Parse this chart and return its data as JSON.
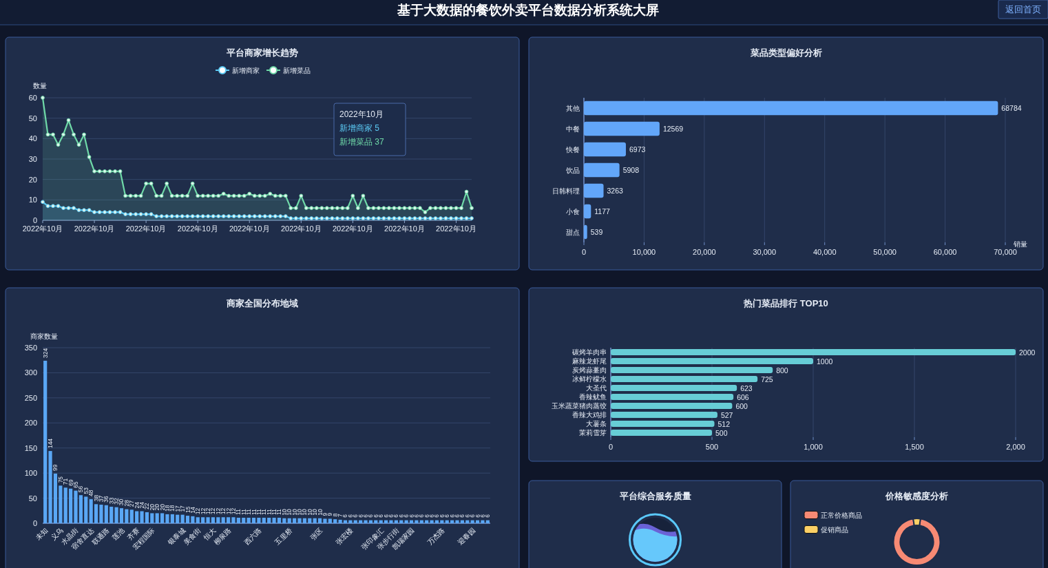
{
  "chart_data": [
    {
      "type": "other",
      "title": "基于大数据的餐饮外卖平台数据分析系统大屏",
      "annotations": [
        "返回首页"
      ]
    },
    {
      "type": "area",
      "title": "平台商家增长趋势",
      "ylabel": "数量",
      "legend": "top",
      "marker": "circle",
      "grid": "y",
      "ylim": [
        0,
        60
      ],
      "yticks": [
        {
          "value": 0,
          "label": "0"
        },
        10,
        20,
        30,
        40,
        50,
        60
      ],
      "categories": [
        "2022年10月",
        null,
        null,
        null,
        null,
        null,
        null,
        null,
        null,
        null,
        "2022年10月",
        null,
        null,
        null,
        null,
        null,
        null,
        null,
        null,
        null,
        "2022年10月",
        null,
        null,
        null,
        null,
        null,
        null,
        null,
        null,
        null,
        "2022年10月",
        null,
        null,
        null,
        null,
        null,
        null,
        null,
        null,
        null,
        "2022年10月",
        null,
        null,
        null,
        null,
        null,
        null,
        null,
        null,
        null,
        "2022年10月",
        null,
        null,
        null,
        null,
        null,
        null,
        null,
        null,
        null,
        "2022年10月",
        null,
        null,
        null,
        null,
        null,
        null,
        null,
        null,
        null,
        "2022年10月",
        null,
        null,
        null,
        null,
        null,
        null,
        null,
        null,
        null,
        "2022年10月",
        null,
        null,
        null
      ],
      "series": [
        {
          "name": "新增菜品",
          "color": "#6fd9a8",
          "values": [
            60,
            42,
            42,
            37,
            42,
            49,
            42,
            37,
            42,
            31,
            24,
            24,
            24,
            24,
            24,
            24,
            12,
            12,
            12,
            12,
            18,
            18,
            12,
            12,
            18,
            12,
            12,
            12,
            12,
            18,
            12,
            12,
            12,
            12,
            12,
            13,
            12,
            12,
            12,
            12,
            13,
            12,
            12,
            12,
            13,
            12,
            12,
            12,
            6,
            6,
            12,
            6,
            6,
            6,
            6,
            6,
            6,
            6,
            6,
            6,
            12,
            6,
            12,
            6,
            6,
            6,
            6,
            6,
            6,
            6,
            6,
            6,
            6,
            6,
            4,
            6,
            6,
            6,
            6,
            6,
            6,
            6,
            14,
            6
          ]
        },
        {
          "name": "新增商家",
          "color": "#5ccbf5",
          "values": [
            9,
            7,
            7,
            7,
            6,
            6,
            6,
            5,
            5,
            5,
            4,
            4,
            4,
            4,
            4,
            4,
            3,
            3,
            3,
            3,
            3,
            3,
            2,
            2,
            2,
            2,
            2,
            2,
            2,
            2,
            2,
            2,
            2,
            2,
            2,
            2,
            2,
            2,
            2,
            2,
            2,
            2,
            2,
            2,
            2,
            2,
            2,
            2,
            1,
            1,
            1,
            1,
            1,
            1,
            1,
            1,
            1,
            1,
            1,
            1,
            1,
            1,
            1,
            1,
            1,
            1,
            1,
            1,
            1,
            1,
            1,
            1,
            1,
            1,
            1,
            1,
            1,
            1,
            1,
            1,
            1,
            1,
            1,
            1
          ]
        }
      ],
      "annotations": [
        "2022年10月",
        "新增商家 5",
        "新增菜品 37"
      ]
    },
    {
      "type": "bar",
      "orientation": "horizontal",
      "title": "菜品类型偏好分析",
      "xlabel": "销量",
      "grid": "x",
      "data_labels": true,
      "color": "#62a6f9",
      "categories": [
        "其他",
        "中餐",
        "快餐",
        "饮品",
        "日韩料理",
        "小食",
        "甜点"
      ],
      "values": [
        68784,
        12569,
        6973,
        5908,
        3263,
        1177,
        539
      ],
      "xlim": [
        0,
        70000
      ],
      "xticks": [
        {
          "value": 0,
          "label": "0"
        },
        {
          "value": 10000,
          "label": "10,000"
        },
        {
          "value": 20000,
          "label": "20,000"
        },
        {
          "value": 30000,
          "label": "30,000"
        },
        {
          "value": 40000,
          "label": "40,000"
        },
        {
          "value": 50000,
          "label": "50,000"
        },
        {
          "value": 60000,
          "label": "60,000"
        },
        {
          "value": 70000,
          "label": "70,000"
        }
      ]
    },
    {
      "type": "bar",
      "title": "商家全国分布地域",
      "ylabel": "商家数量",
      "grid": "y",
      "data_labels": true,
      "color": "#5aa7f5",
      "ylim": [
        0,
        350
      ],
      "yticks": [
        {
          "value": 0,
          "label": "0"
        },
        50,
        100,
        150,
        200,
        250,
        300,
        350
      ],
      "categories": [
        "未知",
        null,
        null,
        "义乌",
        null,
        null,
        "水晶街",
        null,
        null,
        "宿舍直达",
        null,
        null,
        "联通路",
        null,
        null,
        "莲池",
        null,
        null,
        "齐赛",
        null,
        null,
        "宏程国际",
        null,
        null,
        null,
        null,
        null,
        "银泰城",
        null,
        null,
        "美食街",
        null,
        null,
        "恒大",
        null,
        null,
        "柳泉路",
        null,
        null,
        null,
        null,
        null,
        "西六路",
        null,
        null,
        null,
        null,
        null,
        "五里桥",
        null,
        null,
        null,
        null,
        null,
        "张区",
        null,
        null,
        null,
        null,
        null,
        "张宏楼",
        null,
        null,
        null,
        null,
        null,
        "张印象汇",
        null,
        null,
        "张步行街",
        null,
        null,
        "凯瑞家园",
        null,
        null,
        null,
        null,
        null,
        "万杰路",
        null,
        null,
        null,
        null,
        null,
        "迎春园",
        null,
        null,
        null
      ],
      "values": [
        324,
        144,
        99,
        75,
        71,
        69,
        65,
        56,
        53,
        48,
        38,
        37,
        36,
        33,
        32,
        30,
        28,
        27,
        24,
        24,
        22,
        20,
        20,
        20,
        18,
        18,
        17,
        17,
        15,
        14,
        12,
        12,
        12,
        12,
        12,
        12,
        12,
        12,
        11,
        11,
        11,
        11,
        11,
        11,
        11,
        11,
        11,
        10,
        10,
        10,
        10,
        10,
        10,
        10,
        10,
        9,
        9,
        8,
        7,
        6,
        6,
        6,
        6,
        6,
        6,
        6,
        6,
        6,
        6,
        6,
        6,
        6,
        6,
        6,
        6,
        6,
        6,
        6,
        6,
        6,
        6,
        6,
        6,
        6,
        6,
        6,
        6,
        6
      ]
    },
    {
      "type": "bar",
      "orientation": "horizontal",
      "title": "热门菜品排行 TOP10",
      "grid": "x",
      "data_labels": true,
      "color": "#67cdd6",
      "categories": [
        "碳烤羊肉串",
        "麻辣龙虾尾",
        "炭烤蒜薹肉",
        "冰鲜柠檬水",
        "大圣代",
        "香辣鱿鱼",
        "玉米蔬菜猪肉蒸饺",
        "香辣大鸡排",
        "大薯条",
        "茉莉雪芽"
      ],
      "values": [
        2000,
        1000,
        800,
        725,
        623,
        606,
        600,
        527,
        512,
        500
      ],
      "xlim": [
        0,
        2000
      ],
      "xticks": [
        {
          "value": 0,
          "label": "0"
        },
        500,
        {
          "value": 1000,
          "label": "1,000"
        },
        {
          "value": 1500,
          "label": "1,500"
        },
        {
          "value": 2000,
          "label": "2,000"
        }
      ]
    },
    {
      "type": "other",
      "title": "平台综合服务质量"
    },
    {
      "type": "donut",
      "title": "价格敏感度分析",
      "legend": "top left",
      "categories": [
        "正常价格商品",
        "促销商品"
      ],
      "values": [
        95,
        5
      ],
      "colors": [
        "#f78a74",
        "#fbd065"
      ]
    }
  ]
}
